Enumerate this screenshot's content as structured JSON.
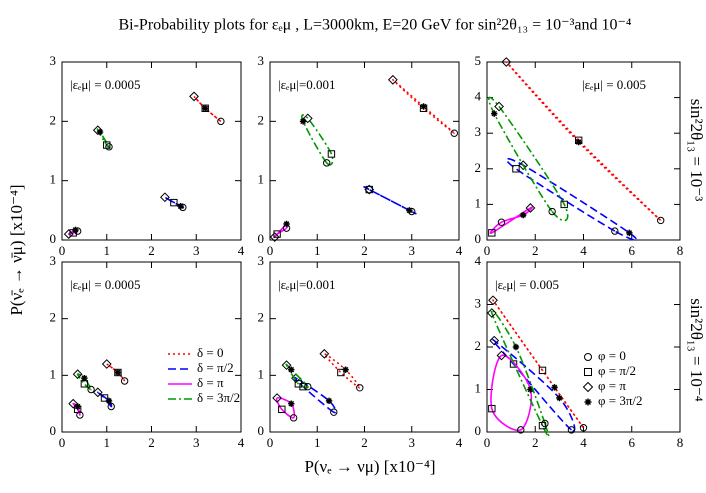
{
  "title": "Bi-Probability plots for εₑμ , L=3000km, E=20 GeV for sin²2θ₁₃ = 10⁻³and 10⁻⁴",
  "x_label": "P(νₑ → νμ) [x10⁻⁴]",
  "y_label": "P(ν̄ₑ → ν̄μ) [x10⁻⁴]",
  "row_labels": [
    "sin²2θ₁₃ = 10⁻³",
    "sin²2θ₁₃ = 10⁻⁴"
  ],
  "phi_legend": {
    "symbols": [
      "circle",
      "square",
      "diamond",
      "star"
    ],
    "labels": [
      "φ = 0",
      "φ = π/2",
      "φ = π",
      "φ = 3π/2"
    ]
  },
  "chart_data": [
    {
      "type": "scatter",
      "annotation": "|εₑμ| = 0.0005",
      "xlim": [
        0,
        4
      ],
      "ylim": [
        0,
        3
      ],
      "xticks": [
        0,
        1,
        2,
        3,
        4
      ],
      "yticks": [
        0,
        1,
        2,
        3
      ],
      "legend": false,
      "series": [
        {
          "name": "δ = 0",
          "color": "#ff0000",
          "dash": "2,3",
          "x": [
            3.55,
            3.2,
            2.95,
            3.2
          ],
          "y": [
            2.0,
            2.22,
            2.42,
            2.22
          ]
        },
        {
          "name": "δ = π/2",
          "color": "#0000ff",
          "dash": "8,4",
          "x": [
            2.7,
            2.5,
            2.3,
            2.65
          ],
          "y": [
            0.55,
            0.63,
            0.72,
            0.57
          ]
        },
        {
          "name": "δ = π",
          "color": "#ff00ff",
          "dash": "",
          "x": [
            0.35,
            0.25,
            0.15,
            0.3
          ],
          "y": [
            0.15,
            0.12,
            0.1,
            0.17
          ]
        },
        {
          "name": "δ = 3π/2",
          "color": "#009900",
          "dash": "8,3,2,3",
          "x": [
            1.05,
            1.0,
            0.8,
            0.85
          ],
          "y": [
            1.57,
            1.6,
            1.85,
            1.82
          ]
        }
      ]
    },
    {
      "type": "scatter",
      "annotation": "|εₑμ|=0.001",
      "xlim": [
        0,
        4
      ],
      "ylim": [
        0,
        3
      ],
      "xticks": [
        0,
        1,
        2,
        3,
        4
      ],
      "yticks": [
        0,
        1,
        2,
        3
      ],
      "legend": false,
      "series": [
        {
          "name": "δ = 0",
          "color": "#ff0000",
          "dash": "2,3",
          "x": [
            3.9,
            3.25,
            2.6,
            3.25
          ],
          "y": [
            1.8,
            2.22,
            2.7,
            2.25
          ]
        },
        {
          "name": "δ = π/2",
          "color": "#0000ff",
          "dash": "8,4",
          "x": [
            3.0,
            2.1,
            2.1,
            2.95
          ],
          "y": [
            0.48,
            0.85,
            0.85,
            0.5
          ]
        },
        {
          "name": "δ = π",
          "color": "#ff00ff",
          "dash": "",
          "x": [
            0.35,
            0.15,
            0.1,
            0.35
          ],
          "y": [
            0.2,
            0.1,
            0.05,
            0.27
          ]
        },
        {
          "name": "δ = 3π/2",
          "color": "#009900",
          "dash": "8,3,2,3",
          "x": [
            1.2,
            1.3,
            0.8,
            0.7
          ],
          "y": [
            1.3,
            1.45,
            2.05,
            2.0
          ]
        }
      ]
    },
    {
      "type": "scatter",
      "annotation": "|εₑμ| = 0.005",
      "xlim": [
        0,
        8
      ],
      "ylim": [
        0,
        5
      ],
      "xticks": [
        0,
        2,
        4,
        6,
        8
      ],
      "yticks": [
        0,
        1,
        2,
        3,
        4,
        5
      ],
      "legend": false,
      "series": [
        {
          "name": "δ = 0",
          "color": "#ff0000",
          "dash": "2,3",
          "x": [
            7.2,
            3.8,
            0.8,
            3.8
          ],
          "y": [
            0.55,
            2.8,
            5.0,
            2.75
          ]
        },
        {
          "name": "δ = π/2",
          "color": "#0000ff",
          "dash": "8,4",
          "x": [
            5.3,
            1.2,
            1.5,
            5.9
          ],
          "y": [
            0.25,
            2.0,
            2.1,
            0.2
          ]
        },
        {
          "name": "δ = π",
          "color": "#ff00ff",
          "dash": "",
          "x": [
            0.6,
            0.2,
            1.8,
            1.5
          ],
          "y": [
            0.5,
            0.2,
            0.9,
            0.7
          ]
        },
        {
          "name": "δ = 3π/2",
          "color": "#009900",
          "dash": "8,3,2,3",
          "x": [
            2.7,
            3.2,
            0.5,
            0.3
          ],
          "y": [
            0.8,
            1.0,
            3.75,
            3.55
          ]
        }
      ]
    },
    {
      "type": "scatter",
      "annotation": "|εₑμ| = 0.0005",
      "xlim": [
        0,
        4
      ],
      "ylim": [
        0,
        3
      ],
      "xticks": [
        0,
        1,
        2,
        3,
        4
      ],
      "yticks": [
        0,
        1,
        2,
        3
      ],
      "legend": true,
      "series": [
        {
          "name": "δ = 0",
          "color": "#ff0000",
          "dash": "2,3",
          "x": [
            1.4,
            1.25,
            1.0,
            1.25
          ],
          "y": [
            0.9,
            1.05,
            1.2,
            1.05
          ]
        },
        {
          "name": "δ = π/2",
          "color": "#0000ff",
          "dash": "8,4",
          "x": [
            1.1,
            0.95,
            0.8,
            1.05
          ],
          "y": [
            0.45,
            0.6,
            0.7,
            0.55
          ]
        },
        {
          "name": "δ = π",
          "color": "#ff00ff",
          "dash": "",
          "x": [
            0.4,
            0.35,
            0.25,
            0.35
          ],
          "y": [
            0.3,
            0.4,
            0.5,
            0.45
          ]
        },
        {
          "name": "δ = 3π/2",
          "color": "#009900",
          "dash": "8,3,2,3",
          "x": [
            0.65,
            0.5,
            0.35,
            0.5
          ],
          "y": [
            0.75,
            0.85,
            1.02,
            0.95
          ]
        }
      ]
    },
    {
      "type": "scatter",
      "annotation": "|εₑμ|=0.001",
      "xlim": [
        0,
        4
      ],
      "ylim": [
        0,
        3
      ],
      "xticks": [
        0,
        1,
        2,
        3,
        4
      ],
      "yticks": [
        0,
        1,
        2,
        3
      ],
      "legend": false,
      "series": [
        {
          "name": "δ = 0",
          "color": "#ff0000",
          "dash": "2,3",
          "x": [
            1.9,
            1.5,
            1.15,
            1.6
          ],
          "y": [
            0.78,
            1.05,
            1.38,
            1.1
          ]
        },
        {
          "name": "δ = π/2",
          "color": "#0000ff",
          "dash": "8,4",
          "x": [
            1.35,
            0.7,
            0.55,
            1.25
          ],
          "y": [
            0.35,
            0.8,
            0.95,
            0.55
          ]
        },
        {
          "name": "δ = π",
          "color": "#ff00ff",
          "dash": "",
          "x": [
            0.5,
            0.25,
            0.15,
            0.45
          ],
          "y": [
            0.25,
            0.4,
            0.6,
            0.5
          ]
        },
        {
          "name": "δ = 3π/2",
          "color": "#009900",
          "dash": "8,3,2,3",
          "x": [
            0.8,
            0.6,
            0.35,
            0.45
          ],
          "y": [
            0.8,
            0.85,
            1.18,
            1.1
          ]
        }
      ]
    },
    {
      "type": "scatter",
      "annotation": "|εₑμ| = 0.005",
      "xlim": [
        0,
        8
      ],
      "ylim": [
        0,
        4
      ],
      "xticks": [
        0,
        2,
        4,
        6,
        8
      ],
      "yticks": [
        0,
        1,
        2,
        3,
        4
      ],
      "legend": false,
      "series": [
        {
          "name": "δ = 0",
          "color": "#ff0000",
          "dash": "2,3",
          "x": [
            4.0,
            2.3,
            0.25,
            2.8
          ],
          "y": [
            0.1,
            1.45,
            3.1,
            1.05
          ]
        },
        {
          "name": "δ = π/2",
          "color": "#0000ff",
          "dash": "8,4",
          "x": [
            3.5,
            1.1,
            0.3,
            3.0
          ],
          "y": [
            0.05,
            1.6,
            2.15,
            0.8
          ]
        },
        {
          "name": "δ = π",
          "color": "#ff00ff",
          "dash": "",
          "x": [
            1.4,
            0.2,
            0.6,
            1.8
          ],
          "y": [
            0.05,
            0.55,
            1.8,
            1.0
          ]
        },
        {
          "name": "δ = 3π/2",
          "color": "#009900",
          "dash": "8,3,2,3",
          "x": [
            2.4,
            2.3,
            0.2,
            1.2
          ],
          "y": [
            0.2,
            0.15,
            2.8,
            2.0
          ]
        }
      ]
    }
  ]
}
